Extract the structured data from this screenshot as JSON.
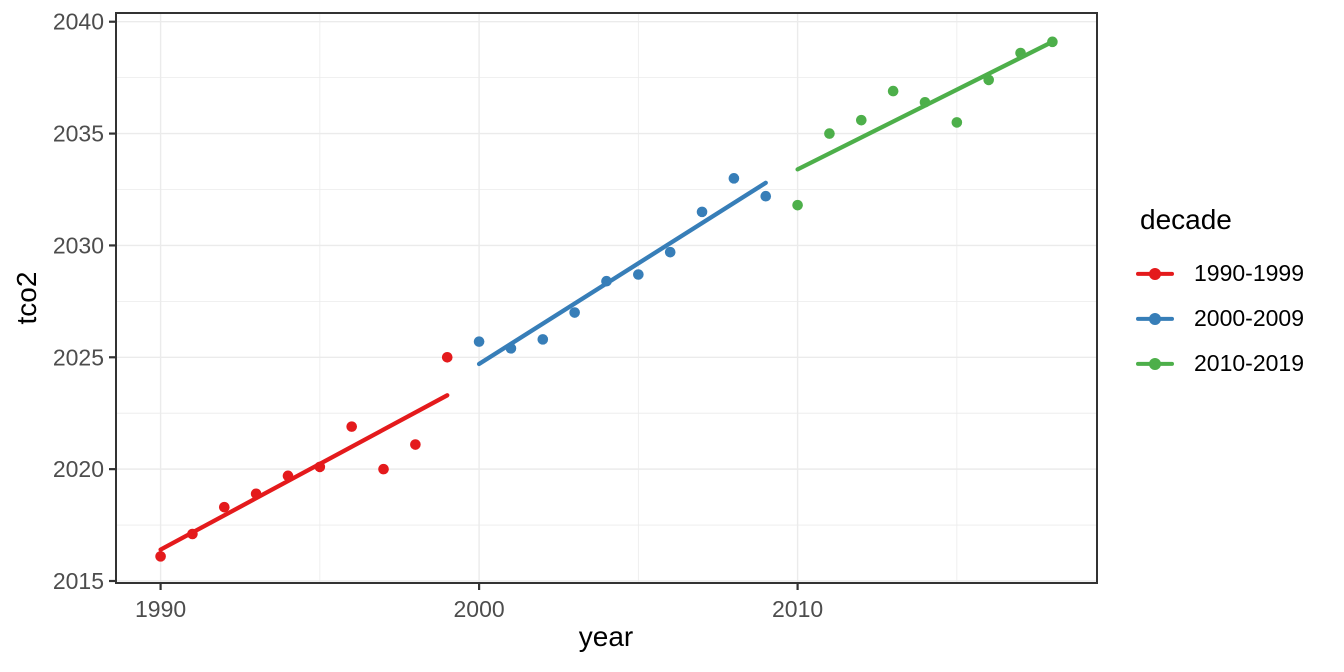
{
  "legend": {
    "title": "decade",
    "position": "right",
    "items": [
      {
        "label": "1990-1999",
        "color": "#E41A1C"
      },
      {
        "label": "2000-2009",
        "color": "#377EB8"
      },
      {
        "label": "2010-2019",
        "color": "#4DAF4A"
      }
    ]
  },
  "chart_data": {
    "type": "scatter",
    "title": "",
    "xlabel": "year",
    "ylabel": "tco2",
    "xlim": [
      1988.6,
      2019.4
    ],
    "ylim": [
      2014.91,
      2040.39
    ],
    "x_major_ticks": [
      1990,
      2000,
      2010
    ],
    "x_minor_gridlines": [
      1995,
      2005,
      2015
    ],
    "y_major_ticks": [
      2015,
      2020,
      2025,
      2030,
      2035,
      2040
    ],
    "y_minor_gridlines": [
      2017.5,
      2022.5,
      2027.5,
      2032.5,
      2037.5
    ],
    "grid": "major-and-minor",
    "legend_position": "right",
    "series": [
      {
        "name": "1990-1999",
        "color": "#E41A1C",
        "x": [
          1990,
          1991,
          1992,
          1993,
          1994,
          1995,
          1996,
          1997,
          1998,
          1999
        ],
        "y": [
          2016.1,
          2017.1,
          2018.3,
          2018.9,
          2019.7,
          2020.1,
          2021.9,
          2020.0,
          2021.1,
          2025.0
        ],
        "trend": {
          "type": "linear",
          "x": [
            1990,
            1999
          ],
          "y": [
            2016.4,
            2023.3
          ]
        }
      },
      {
        "name": "2000-2009",
        "color": "#377EB8",
        "x": [
          2000,
          2001,
          2002,
          2003,
          2004,
          2005,
          2006,
          2007,
          2008,
          2009
        ],
        "y": [
          2025.7,
          2025.4,
          2025.8,
          2027.0,
          2028.4,
          2028.7,
          2029.7,
          2031.5,
          2033.0,
          2032.2
        ],
        "trend": {
          "type": "linear",
          "x": [
            2000,
            2009
          ],
          "y": [
            2024.7,
            2032.8
          ]
        }
      },
      {
        "name": "2010-2019",
        "color": "#4DAF4A",
        "x": [
          2010,
          2011,
          2012,
          2013,
          2014,
          2015,
          2016,
          2017,
          2018
        ],
        "y": [
          2031.8,
          2035.0,
          2035.6,
          2036.9,
          2036.4,
          2035.5,
          2037.4,
          2038.6,
          2039.1
        ],
        "trend": {
          "type": "linear",
          "x": [
            2010,
            2018
          ],
          "y": [
            2033.4,
            2039.1
          ]
        }
      }
    ],
    "style": {
      "grid_color": "#EBEBEB",
      "panel_border_color": "#333333",
      "tick_color": "#333333",
      "tick_label_color": "#4D4D4D",
      "axis_title_color": "#000000",
      "point_radius": 5.3,
      "trend_line_width": 4.3
    }
  }
}
